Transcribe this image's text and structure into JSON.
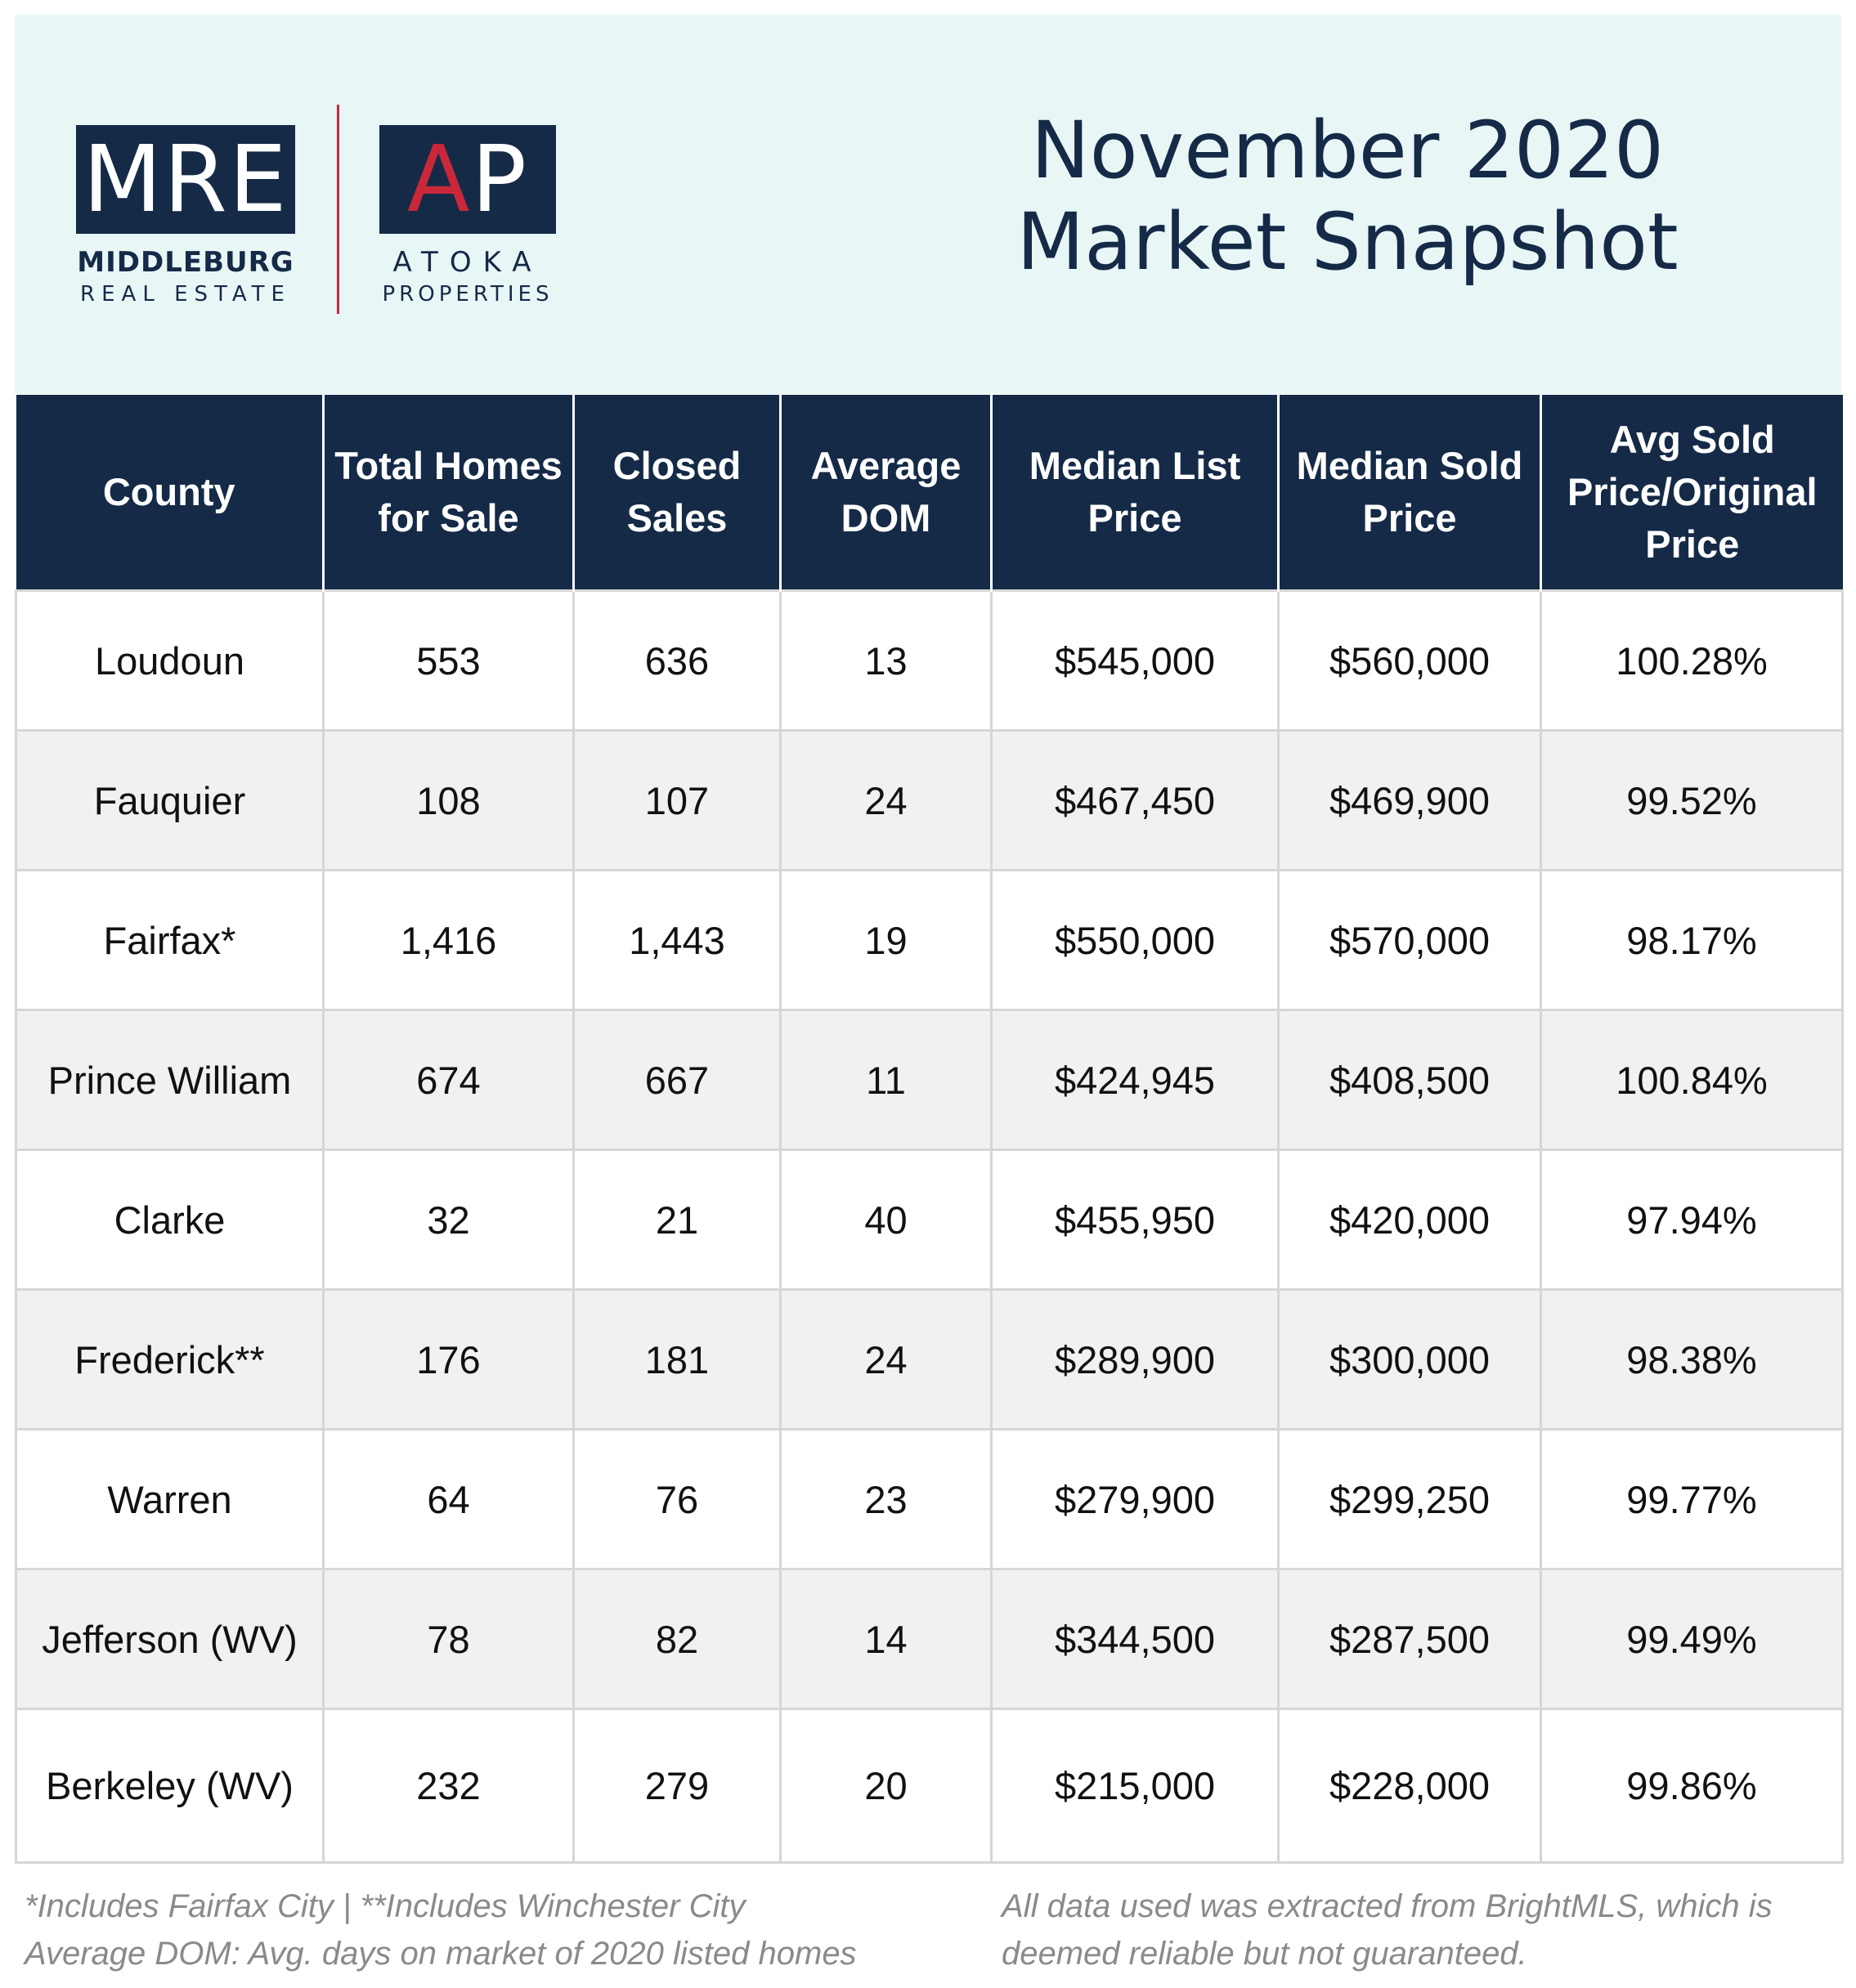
{
  "header": {
    "logo_mre": {
      "text_pre": "M",
      "accent": "/",
      "text_post": "RE",
      "line1": "MIDDLEBURG",
      "line2": "REAL ESTATE"
    },
    "logo_ap": {
      "text_pre": "A",
      "accent": "",
      "text_post": "P",
      "line1": "ATOKA",
      "line2": "PROPERTIES"
    },
    "title_line1": "November 2020",
    "title_line2": "Market Snapshot"
  },
  "colors": {
    "navy": "#152a47",
    "accent_red": "#c8283a",
    "header_bg": "#e8f6f6",
    "row_alt": "#f1f1f1"
  },
  "table": {
    "columns": [
      "County",
      "Total Homes for Sale",
      "Closed Sales",
      "Average DOM",
      "Median List Price",
      "Median Sold Price",
      "Avg Sold Price/Original Price"
    ],
    "rows": [
      [
        "Loudoun",
        "553",
        "636",
        "13",
        "$545,000",
        "$560,000",
        "100.28%"
      ],
      [
        "Fauquier",
        "108",
        "107",
        "24",
        "$467,450",
        "$469,900",
        "99.52%"
      ],
      [
        "Fairfax*",
        "1,416",
        "1,443",
        "19",
        "$550,000",
        "$570,000",
        "98.17%"
      ],
      [
        "Prince William",
        "674",
        "667",
        "11",
        "$424,945",
        "$408,500",
        "100.84%"
      ],
      [
        "Clarke",
        "32",
        "21",
        "40",
        "$455,950",
        "$420,000",
        "97.94%"
      ],
      [
        "Frederick**",
        "176",
        "181",
        "24",
        "$289,900",
        "$300,000",
        "98.38%"
      ],
      [
        "Warren",
        "64",
        "76",
        "23",
        "$279,900",
        "$299,250",
        "99.77%"
      ],
      [
        "Jefferson (WV)",
        "78",
        "82",
        "14",
        "$344,500",
        "$287,500",
        "99.49%"
      ],
      [
        "Berkeley (WV)",
        "232",
        "279",
        "20",
        "$215,000",
        "$228,000",
        "99.86%"
      ]
    ]
  },
  "footer": {
    "left_line1": "*Includes Fairfax City | **Includes Winchester City",
    "left_line2": "Average DOM: Avg. days on market of 2020 listed homes",
    "right_line1": "All data used was extracted from BrightMLS, which is",
    "right_line2": "deemed reliable but not guaranteed."
  }
}
